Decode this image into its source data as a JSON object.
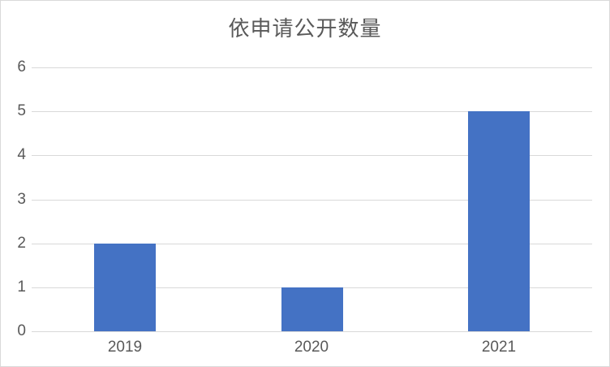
{
  "chart_data": {
    "type": "bar",
    "title": "依申请公开数量",
    "categories": [
      "2019",
      "2020",
      "2021"
    ],
    "values": [
      2,
      1,
      5
    ],
    "series": [
      {
        "name": "依申请公开数量",
        "values": [
          2,
          1,
          5
        ]
      }
    ],
    "xlabel": "",
    "ylabel": "",
    "ylim": [
      0,
      6
    ],
    "yticks": [
      0,
      1,
      2,
      3,
      4,
      5,
      6
    ],
    "grid": "horizontal",
    "legend_position": "none"
  },
  "colors": {
    "bar": "#4472c4",
    "title_text": "#595959",
    "axis_text": "#595959",
    "gridline": "#d9d9d9",
    "chart_border": "#d9d9d9",
    "background": "#ffffff"
  }
}
